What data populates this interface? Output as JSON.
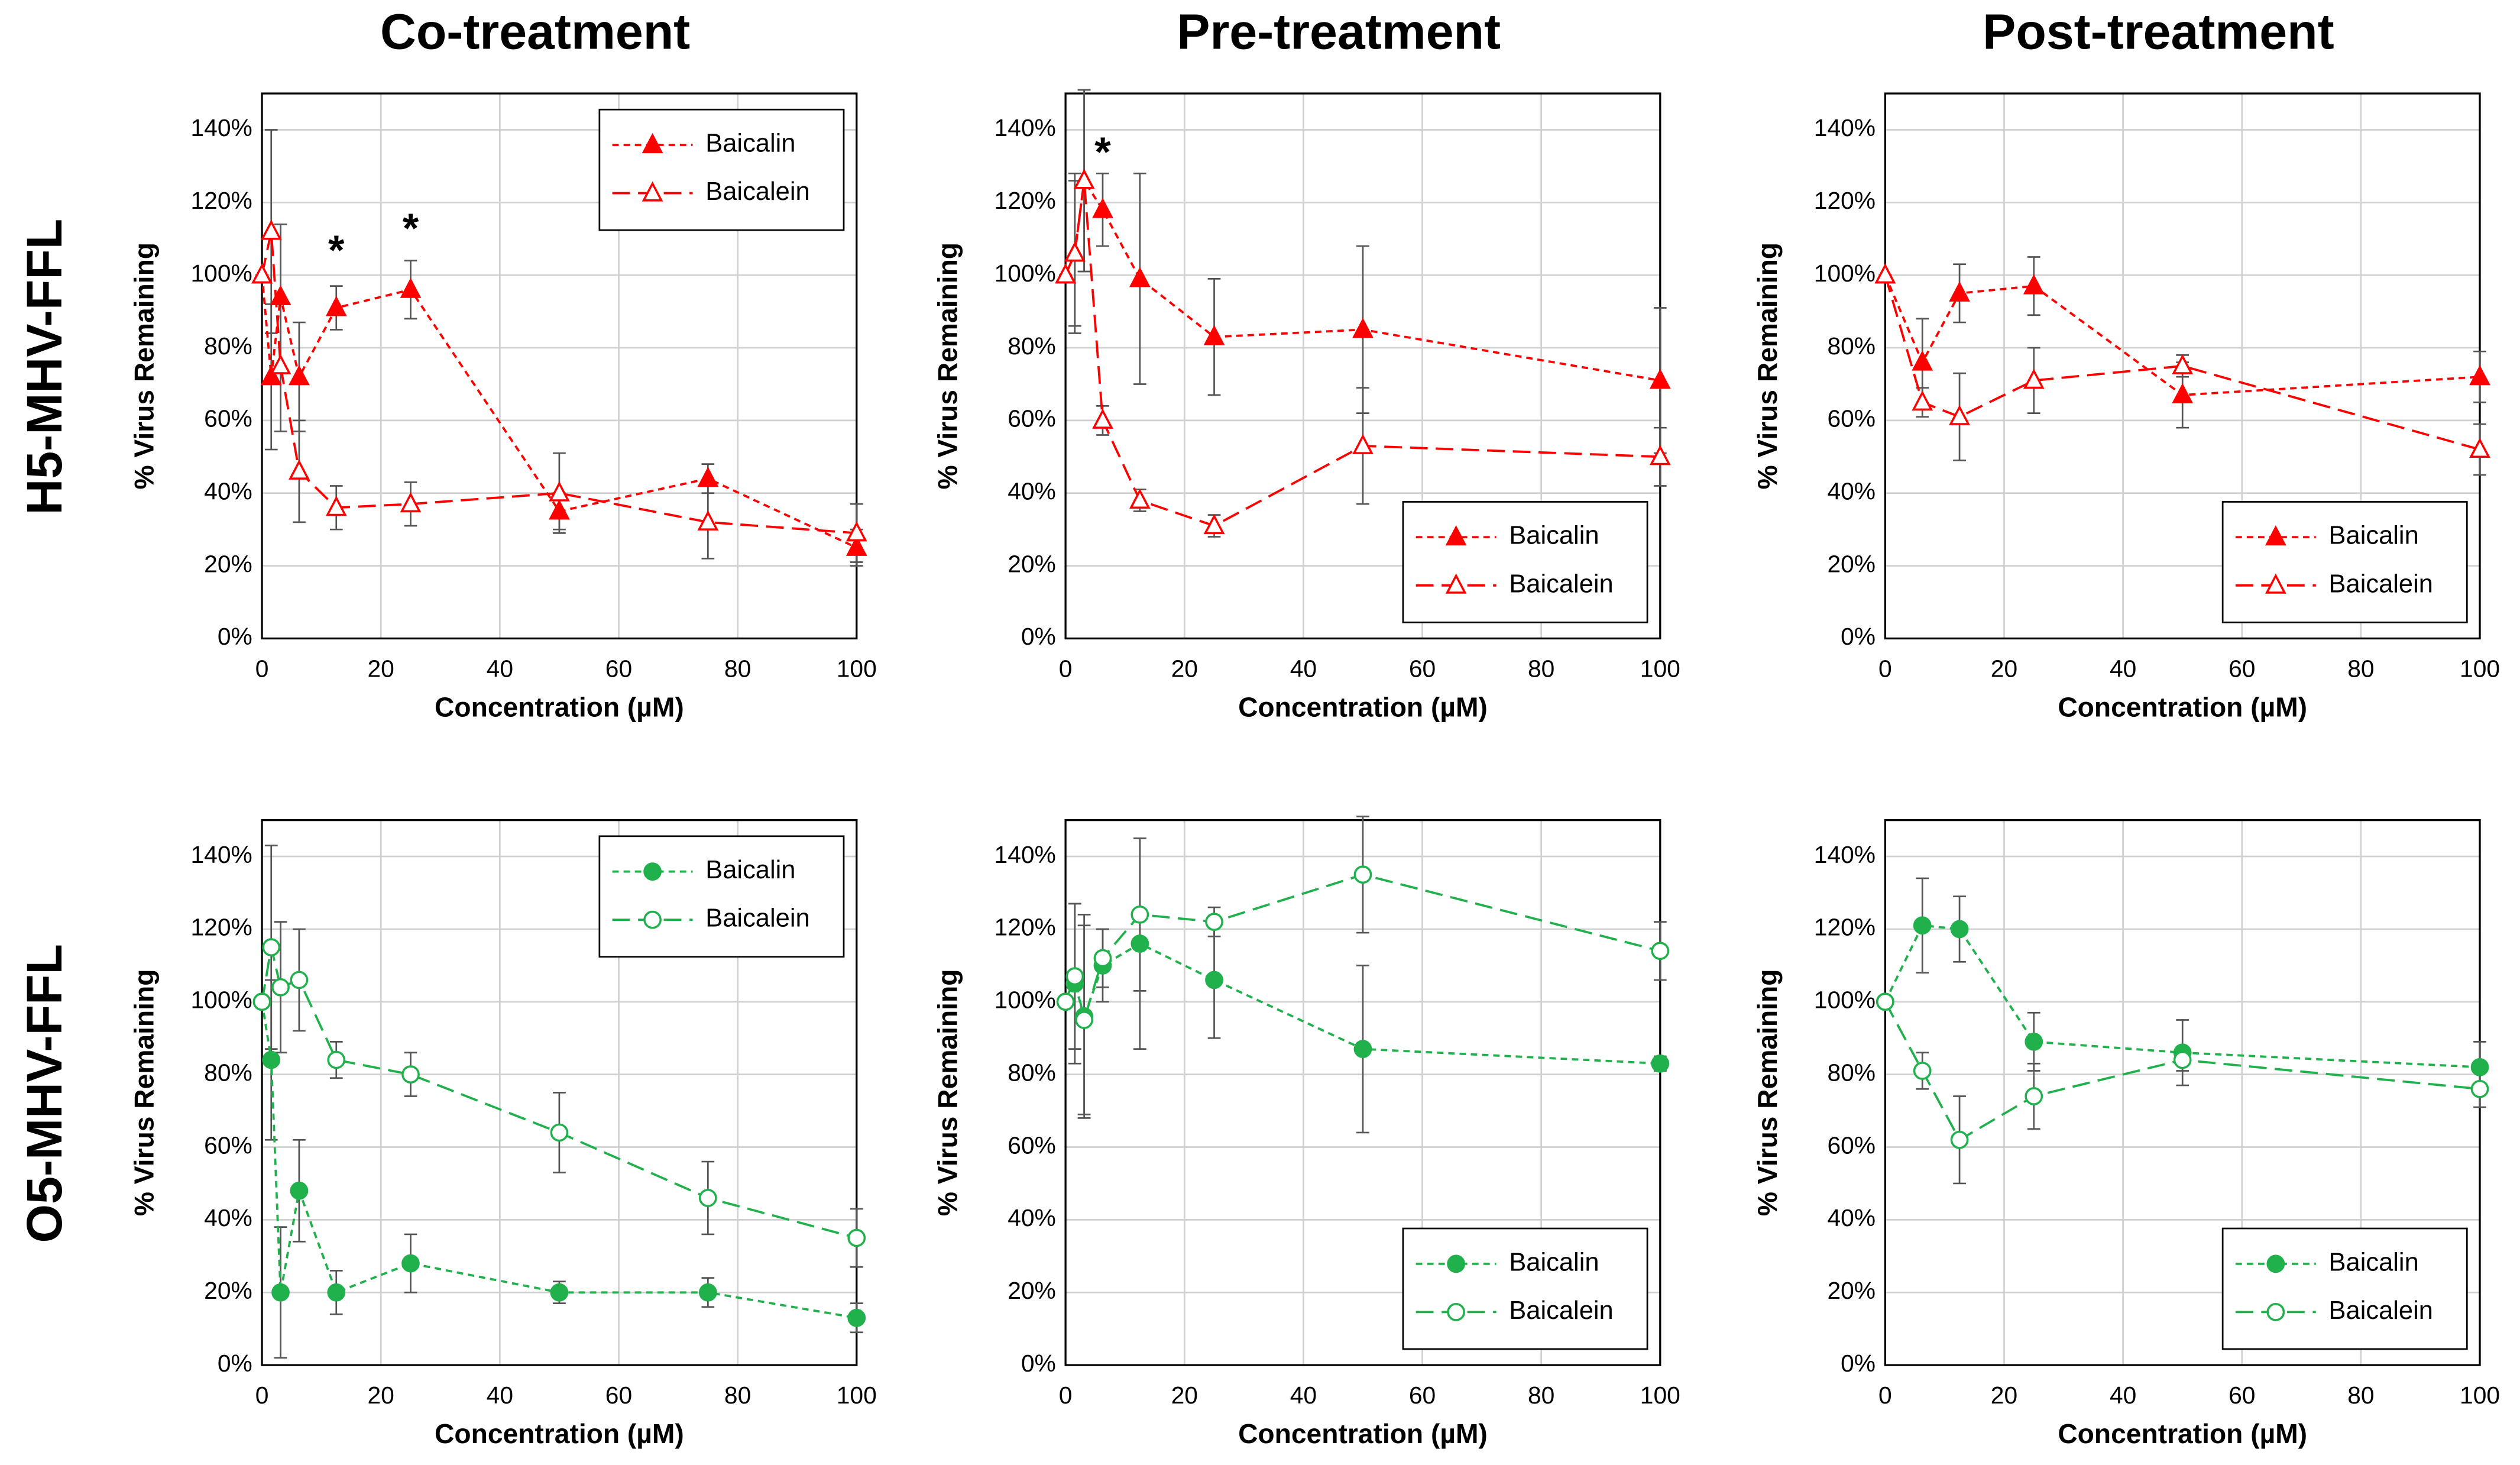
{
  "row_labels": [
    "H5-MHV-FFL",
    "O5-MHV-FFL"
  ],
  "chart_data": [
    {
      "type": "line",
      "title": "Co-treatment",
      "x_label": "Concentration (µM)",
      "y_label": "% Virus Remaining",
      "x": [
        0,
        1.56,
        3.13,
        6.25,
        12.5,
        25,
        50,
        75,
        100
      ],
      "xlim": [
        0,
        100
      ],
      "xticks": [
        0,
        20,
        40,
        60,
        80,
        100
      ],
      "ylim": [
        0,
        150
      ],
      "yticks": [
        {
          "value": 0,
          "label": "0%"
        },
        {
          "value": 20,
          "label": "20%"
        },
        {
          "value": 40,
          "label": "40%"
        },
        {
          "value": 60,
          "label": "60%"
        },
        {
          "value": 80,
          "label": "80%"
        },
        {
          "value": 100,
          "label": "100%"
        },
        {
          "value": 120,
          "label": "120%"
        },
        {
          "value": 140,
          "label": "140%"
        }
      ],
      "grid": true,
      "legend": "upper right",
      "series": [
        {
          "name": "Baicalin",
          "color": "#ff0000",
          "marker": "triangle",
          "filled": true,
          "dash": "short",
          "values": [
            100,
            72,
            94,
            72,
            91,
            96,
            35,
            44,
            25
          ],
          "errors": [
            0,
            20,
            20,
            15,
            6,
            8,
            5,
            4,
            5
          ]
        },
        {
          "name": "Baicalein",
          "color": "#ff0000",
          "marker": "triangle",
          "filled": false,
          "dash": "long",
          "values": [
            100,
            112,
            75,
            46,
            36,
            37,
            40,
            32,
            29
          ],
          "errors": [
            0,
            28,
            18,
            14,
            6,
            6,
            11,
            10,
            8
          ]
        }
      ],
      "annotations": [
        {
          "text": "*",
          "x": 12.5,
          "y": 106
        },
        {
          "text": "*",
          "x": 25,
          "y": 112
        }
      ]
    },
    {
      "type": "line",
      "title": "Pre-treatment",
      "x_label": "Concentration (µM)",
      "y_label": "% Virus Remaining",
      "x": [
        0,
        1.56,
        3.13,
        6.25,
        12.5,
        25,
        50,
        100
      ],
      "xlim": [
        0,
        100
      ],
      "xticks": [
        0,
        20,
        40,
        60,
        80,
        100
      ],
      "ylim": [
        0,
        150
      ],
      "yticks": [
        {
          "value": 0,
          "label": "0%"
        },
        {
          "value": 20,
          "label": "20%"
        },
        {
          "value": 40,
          "label": "40%"
        },
        {
          "value": 60,
          "label": "60%"
        },
        {
          "value": 80,
          "label": "80%"
        },
        {
          "value": 100,
          "label": "100%"
        },
        {
          "value": 120,
          "label": "120%"
        },
        {
          "value": 140,
          "label": "140%"
        }
      ],
      "grid": true,
      "legend": "lower right",
      "series": [
        {
          "name": "Baicalin",
          "color": "#ff0000",
          "marker": "triangle",
          "filled": true,
          "dash": "short",
          "values": [
            100,
            106,
            126,
            118,
            99,
            83,
            85,
            71
          ],
          "errors": [
            0,
            22,
            25,
            10,
            29,
            16,
            23,
            20
          ]
        },
        {
          "name": "Baicalein",
          "color": "#ff0000",
          "marker": "triangle",
          "filled": false,
          "dash": "long",
          "values": [
            100,
            106,
            126,
            60,
            38,
            31,
            53,
            50
          ],
          "errors": [
            0,
            20,
            25,
            4,
            3,
            3,
            16,
            8
          ]
        }
      ],
      "annotations": [
        {
          "text": "*",
          "x": 6.25,
          "y": 133
        }
      ]
    },
    {
      "type": "line",
      "title": "Post-treatment",
      "x_label": "Concentration (µM)",
      "y_label": "% Virus Remaining",
      "x": [
        0,
        6.25,
        12.5,
        25,
        50,
        100
      ],
      "xlim": [
        0,
        100
      ],
      "xticks": [
        0,
        20,
        40,
        60,
        80,
        100
      ],
      "ylim": [
        0,
        150
      ],
      "yticks": [
        {
          "value": 0,
          "label": "0%"
        },
        {
          "value": 20,
          "label": "20%"
        },
        {
          "value": 40,
          "label": "40%"
        },
        {
          "value": 60,
          "label": "60%"
        },
        {
          "value": 80,
          "label": "80%"
        },
        {
          "value": 100,
          "label": "100%"
        },
        {
          "value": 120,
          "label": "120%"
        },
        {
          "value": 140,
          "label": "140%"
        }
      ],
      "grid": true,
      "legend": "lower right",
      "series": [
        {
          "name": "Baicalin",
          "color": "#ff0000",
          "marker": "triangle",
          "filled": true,
          "dash": "short",
          "values": [
            100,
            76,
            95,
            97,
            67,
            72
          ],
          "errors": [
            0,
            12,
            8,
            8,
            9,
            7
          ]
        },
        {
          "name": "Baicalein",
          "color": "#ff0000",
          "marker": "triangle",
          "filled": false,
          "dash": "long",
          "values": [
            100,
            65,
            61,
            71,
            75,
            52
          ],
          "errors": [
            0,
            4,
            12,
            9,
            3,
            7
          ]
        }
      ]
    },
    {
      "type": "line",
      "x_label": "Concentration (µM)",
      "y_label": "% Virus Remaining",
      "x": [
        0,
        1.56,
        3.13,
        6.25,
        12.5,
        25,
        50,
        75,
        100
      ],
      "xlim": [
        0,
        100
      ],
      "xticks": [
        0,
        20,
        40,
        60,
        80,
        100
      ],
      "ylim": [
        0,
        150
      ],
      "yticks": [
        {
          "value": 0,
          "label": "0%"
        },
        {
          "value": 20,
          "label": "20%"
        },
        {
          "value": 40,
          "label": "40%"
        },
        {
          "value": 60,
          "label": "60%"
        },
        {
          "value": 80,
          "label": "80%"
        },
        {
          "value": 100,
          "label": "100%"
        },
        {
          "value": 120,
          "label": "120%"
        },
        {
          "value": 140,
          "label": "140%"
        }
      ],
      "grid": true,
      "legend": "upper right",
      "series": [
        {
          "name": "Baicalin",
          "color": "#20b04c",
          "marker": "circle",
          "filled": true,
          "dash": "short",
          "values": [
            100,
            84,
            20,
            48,
            20,
            28,
            20,
            20,
            13
          ],
          "errors": [
            0,
            22,
            18,
            14,
            6,
            8,
            3,
            4,
            4
          ]
        },
        {
          "name": "Baicalein",
          "color": "#20b04c",
          "marker": "circle",
          "filled": false,
          "dash": "long",
          "values": [
            100,
            115,
            104,
            106,
            84,
            80,
            64,
            46,
            35
          ],
          "errors": [
            0,
            28,
            18,
            14,
            5,
            6,
            11,
            10,
            8
          ]
        }
      ]
    },
    {
      "type": "line",
      "x_label": "Concentration (µM)",
      "y_label": "% Virus Remaining",
      "x": [
        0,
        1.56,
        3.13,
        6.25,
        12.5,
        25,
        50,
        100
      ],
      "xlim": [
        0,
        100
      ],
      "xticks": [
        0,
        20,
        40,
        60,
        80,
        100
      ],
      "ylim": [
        0,
        150
      ],
      "yticks": [
        {
          "value": 0,
          "label": "0%"
        },
        {
          "value": 20,
          "label": "20%"
        },
        {
          "value": 40,
          "label": "40%"
        },
        {
          "value": 60,
          "label": "60%"
        },
        {
          "value": 80,
          "label": "80%"
        },
        {
          "value": 100,
          "label": "100%"
        },
        {
          "value": 120,
          "label": "120%"
        },
        {
          "value": 140,
          "label": "140%"
        }
      ],
      "grid": true,
      "legend": "lower right",
      "series": [
        {
          "name": "Baicalin",
          "color": "#20b04c",
          "marker": "circle",
          "filled": true,
          "dash": "short",
          "values": [
            100,
            105,
            96,
            110,
            116,
            106,
            87,
            83
          ],
          "errors": [
            0,
            22,
            28,
            10,
            29,
            16,
            23,
            2
          ]
        },
        {
          "name": "Baicalein",
          "color": "#20b04c",
          "marker": "circle",
          "filled": false,
          "dash": "long",
          "values": [
            100,
            107,
            95,
            112,
            124,
            122,
            135,
            114
          ],
          "errors": [
            0,
            20,
            26,
            8,
            21,
            4,
            16,
            8
          ]
        }
      ]
    },
    {
      "type": "line",
      "x_label": "Concentration (µM)",
      "y_label": "% Virus Remaining",
      "x": [
        0,
        6.25,
        12.5,
        25,
        50,
        100
      ],
      "xlim": [
        0,
        100
      ],
      "xticks": [
        0,
        20,
        40,
        60,
        80,
        100
      ],
      "ylim": [
        0,
        150
      ],
      "yticks": [
        {
          "value": 0,
          "label": "0%"
        },
        {
          "value": 20,
          "label": "20%"
        },
        {
          "value": 40,
          "label": "40%"
        },
        {
          "value": 60,
          "label": "60%"
        },
        {
          "value": 80,
          "label": "80%"
        },
        {
          "value": 100,
          "label": "100%"
        },
        {
          "value": 120,
          "label": "120%"
        },
        {
          "value": 140,
          "label": "140%"
        }
      ],
      "grid": true,
      "legend": "lower right",
      "series": [
        {
          "name": "Baicalin",
          "color": "#20b04c",
          "marker": "circle",
          "filled": true,
          "dash": "short",
          "values": [
            100,
            121,
            120,
            89,
            86,
            82
          ],
          "errors": [
            0,
            13,
            9,
            8,
            9,
            7
          ]
        },
        {
          "name": "Baicalein",
          "color": "#20b04c",
          "marker": "circle",
          "filled": false,
          "dash": "long",
          "values": [
            100,
            81,
            62,
            74,
            84,
            76
          ],
          "errors": [
            0,
            5,
            12,
            9,
            3,
            5
          ]
        }
      ]
    }
  ]
}
